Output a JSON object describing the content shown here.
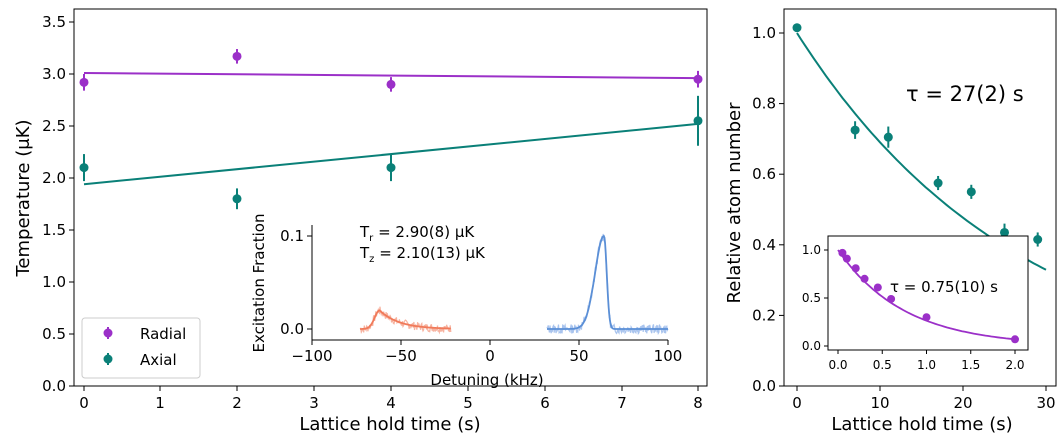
{
  "chart_data": [
    {
      "type": "scatter",
      "xlabel": "Lattice hold time (s)",
      "ylabel": "Temperature (μK)",
      "xticks": [
        0,
        1,
        2,
        3,
        4,
        5,
        6,
        7,
        8
      ],
      "yticks": [
        "0.0",
        "0.5",
        "1.0",
        "1.5",
        "2.0",
        "2.5",
        "3.0",
        "3.5"
      ],
      "ylim": [
        0,
        3.5
      ],
      "legend_position": "lower-left",
      "series": [
        {
          "name": "Radial",
          "color": "#9b30c8",
          "x": [
            0,
            2,
            4,
            8
          ],
          "y": [
            2.92,
            3.17,
            2.9,
            2.95
          ],
          "err": [
            0.08,
            0.07,
            0.07,
            0.08
          ],
          "fit": [
            [
              0,
              3.01
            ],
            [
              8,
              2.96
            ]
          ]
        },
        {
          "name": "Axial",
          "color": "#0a8078",
          "x": [
            0,
            2,
            4,
            8
          ],
          "y": [
            2.1,
            1.8,
            2.1,
            2.55
          ],
          "err": [
            0.13,
            0.1,
            0.13,
            0.24
          ],
          "fit": [
            [
              0,
              1.94
            ],
            [
              8,
              2.52
            ]
          ]
        }
      ],
      "inset": {
        "type": "line",
        "xlabel": "Detuning (kHz)",
        "ylabel": "Excitation Fraction",
        "xticks": [
          "−100",
          "−50",
          "0",
          "50",
          "100"
        ],
        "yticks": [
          "0.0",
          "0.1"
        ],
        "annotation_line1": "T",
        "annotation_sub1": "r",
        "annotation_val1": " = 2.90(8) μK",
        "annotation_line2": "T",
        "annotation_sub2": "z",
        "annotation_val2": " = 2.10(13) μK",
        "red_color": "#f07a5a",
        "blue_color": "#5b8fd6"
      }
    },
    {
      "type": "scatter",
      "xlabel": "Lattice hold time (s)",
      "ylabel": "Relative atom number",
      "xticks": [
        "0",
        "10",
        "20",
        "30"
      ],
      "yticks": [
        "0.0",
        "0.2",
        "0.4",
        "0.6",
        "0.8",
        "1.0"
      ],
      "color": "#0a8078",
      "x": [
        0,
        7,
        11,
        17,
        21,
        25,
        29
      ],
      "y": [
        1.015,
        0.725,
        0.705,
        0.575,
        0.55,
        0.435,
        0.415
      ],
      "err": [
        0.012,
        0.025,
        0.03,
        0.02,
        0.02,
        0.025,
        0.02
      ],
      "annotation": "τ = 27(2) s",
      "inset": {
        "xticks": [
          "0.0",
          "0.5",
          "1.0",
          "1.5",
          "2.0"
        ],
        "yticks": [
          "0.0",
          "0.5",
          "1.0"
        ],
        "color": "#9b30c8",
        "x": [
          0.05,
          0.1,
          0.2,
          0.3,
          0.45,
          0.6,
          1.0,
          2.0
        ],
        "y": [
          0.97,
          0.91,
          0.81,
          0.7,
          0.61,
          0.49,
          0.3,
          0.07
        ],
        "annotation": "τ = 0.75(10) s"
      }
    }
  ]
}
